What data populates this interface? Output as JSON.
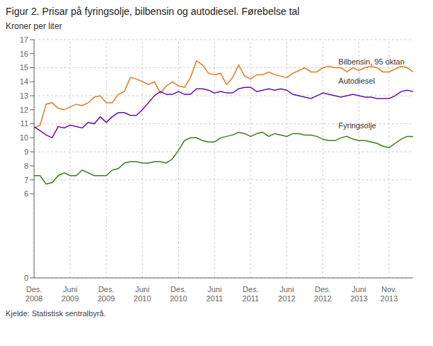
{
  "chart_data": {
    "type": "line",
    "title": "Figur 2. Prisar på fyringsolje, bilbensin og autodiesel. Førebelse tal",
    "y_label": "Kroner per liter",
    "source": "Kjelde: Statistisk sentralbyrå.",
    "categories": [
      "Des.\n2008",
      null,
      null,
      null,
      null,
      null,
      "Juni\n2009",
      null,
      null,
      null,
      null,
      null,
      "Des.\n2009",
      null,
      null,
      null,
      null,
      null,
      "Juni\n2010",
      null,
      null,
      null,
      null,
      null,
      "Des.\n2010",
      null,
      null,
      null,
      null,
      null,
      "Juni\n2011",
      null,
      null,
      null,
      null,
      null,
      "Des.\n2011",
      null,
      null,
      null,
      null,
      null,
      "Juni\n2012",
      null,
      null,
      null,
      null,
      null,
      "Des.\n2012",
      null,
      null,
      null,
      null,
      null,
      "Juni\n2013",
      null,
      null,
      null,
      null,
      "Nov.\n2013",
      null,
      null,
      null,
      null
    ],
    "series": [
      {
        "name": "Bilbensin, 95 oktan",
        "color": "#e07b20",
        "values": [
          10.7,
          10.9,
          12.4,
          12.5,
          12.1,
          12.0,
          12.2,
          12.4,
          12.3,
          12.5,
          12.9,
          13.0,
          12.5,
          12.5,
          13.1,
          13.3,
          14.3,
          14.2,
          14.0,
          13.8,
          14.0,
          13.2,
          13.7,
          14.0,
          13.7,
          13.6,
          14.3,
          15.5,
          15.2,
          14.6,
          14.5,
          14.6,
          13.8,
          14.3,
          15.2,
          14.4,
          14.2,
          14.5,
          14.5,
          14.7,
          14.5,
          14.4,
          14.3,
          14.6,
          14.8,
          15.0,
          14.7,
          14.7,
          15.0,
          15.1,
          15.0,
          15.0,
          14.7,
          15.0,
          14.8,
          15.0,
          15.1,
          15.0,
          14.7,
          14.7,
          14.9,
          15.1,
          15.0,
          14.7
        ]
      },
      {
        "name": "Autodiesel",
        "color": "#6a0dad",
        "values": [
          10.8,
          10.5,
          10.2,
          10.0,
          10.8,
          10.7,
          10.9,
          10.8,
          10.7,
          11.1,
          11.0,
          11.5,
          11.1,
          11.5,
          11.8,
          11.8,
          11.6,
          11.6,
          12.0,
          12.5,
          13.0,
          13.3,
          13.1,
          13.1,
          13.3,
          13.1,
          13.1,
          13.5,
          13.5,
          13.4,
          13.2,
          13.3,
          13.2,
          13.2,
          13.5,
          13.6,
          13.6,
          13.3,
          13.4,
          13.5,
          13.4,
          13.5,
          13.4,
          13.1,
          13.0,
          12.9,
          12.8,
          13.0,
          13.2,
          13.1,
          13.0,
          12.9,
          13.0,
          13.1,
          13.0,
          12.9,
          12.9,
          12.8,
          12.8,
          12.8,
          13.0,
          13.3,
          13.4,
          13.3
        ]
      },
      {
        "name": "Fyringsolje",
        "color": "#3a7d1e",
        "values": [
          7.3,
          7.3,
          6.7,
          6.8,
          7.3,
          7.5,
          7.3,
          7.3,
          7.7,
          7.5,
          7.3,
          7.3,
          7.3,
          7.7,
          7.8,
          8.2,
          8.3,
          8.3,
          8.2,
          8.2,
          8.3,
          8.3,
          8.2,
          8.5,
          9.1,
          9.8,
          10.0,
          10.0,
          9.8,
          9.7,
          9.7,
          10.0,
          10.1,
          10.2,
          10.4,
          10.3,
          10.1,
          10.3,
          10.4,
          10.1,
          10.3,
          10.2,
          10.1,
          10.3,
          10.3,
          10.2,
          10.2,
          10.1,
          9.9,
          9.8,
          9.8,
          10.0,
          10.1,
          9.9,
          9.8,
          9.8,
          9.7,
          9.6,
          9.4,
          9.3,
          9.6,
          9.9,
          10.1,
          10.1
        ]
      }
    ],
    "annotations": [
      {
        "text": "Bilbensin, 95 oktan",
        "y": 15.45
      },
      {
        "text": "Autodiesel",
        "y": 14.05
      },
      {
        "text": "Fyringsolje",
        "y": 10.85
      }
    ],
    "ylim": [
      0,
      17
    ],
    "yticks": [
      0,
      6,
      7,
      8,
      9,
      10,
      11,
      12,
      13,
      14,
      15,
      16,
      17
    ],
    "grid": true
  }
}
